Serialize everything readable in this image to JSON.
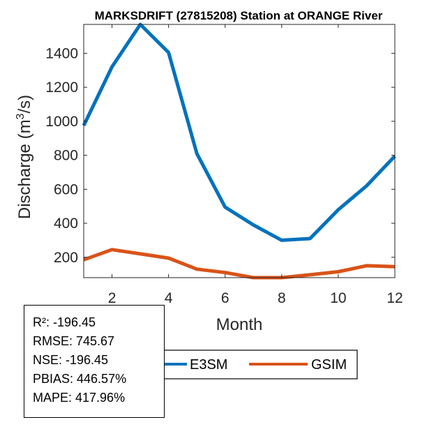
{
  "chart_data": {
    "type": "line",
    "title": "MARKSDRIFT (27815208)  Station at  ORANGE  River",
    "xlabel": "Month",
    "ylabel_main": "Discharge (m",
    "ylabel_sup": "3",
    "ylabel_end": "/s)",
    "xlim": [
      1,
      12
    ],
    "ylim": [
      80,
      1570
    ],
    "xticks": [
      2,
      4,
      6,
      8,
      10,
      12
    ],
    "yticks": [
      200,
      400,
      600,
      800,
      1000,
      1200,
      1400
    ],
    "x": [
      1,
      2,
      3,
      4,
      5,
      6,
      7,
      8,
      9,
      10,
      11,
      12
    ],
    "series": [
      {
        "name": "E3SM",
        "color": "#0072BD",
        "values": [
          975,
          1320,
          1570,
          1405,
          810,
          495,
          390,
          300,
          310,
          480,
          620,
          795
        ]
      },
      {
        "name": "GSIM",
        "color": "#D95319",
        "values": [
          185,
          245,
          220,
          195,
          130,
          110,
          80,
          80,
          97,
          115,
          150,
          145
        ]
      }
    ],
    "legend": [
      "E3SM",
      "GSIM"
    ],
    "legend_position": "bottom-outside"
  },
  "stats": {
    "r2": "R²: -196.45",
    "rmse": "RMSE: 745.67",
    "nse": "NSE: -196.45",
    "pbias": "PBIAS: 446.57%",
    "mape": "MAPE: 417.96%"
  }
}
